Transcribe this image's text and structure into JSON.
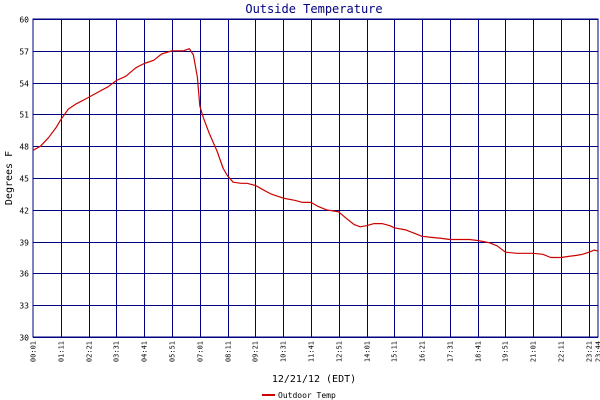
{
  "chart_data": {
    "type": "line",
    "title": "Outside Temperature",
    "xlabel": "12/21/12 (EDT)",
    "ylabel": "Degrees F",
    "ylim": [
      30,
      60
    ],
    "yticks": [
      30,
      33,
      36,
      39,
      42,
      45,
      48,
      51,
      54,
      57,
      60
    ],
    "xlim": [
      "00:01",
      "23:44"
    ],
    "xticks": [
      "00:01",
      "01:11",
      "02:21",
      "03:31",
      "04:41",
      "05:51",
      "07:01",
      "08:11",
      "09:21",
      "10:31",
      "11:41",
      "12:51",
      "14:01",
      "15:11",
      "16:21",
      "17:31",
      "18:41",
      "19:51",
      "21:01",
      "22:11",
      "23:21",
      "23:44"
    ],
    "grid": true,
    "colors": {
      "grid": "#000080",
      "series": "#cc0000",
      "title": "#000080"
    },
    "legend_position": "bottom-center",
    "series": [
      {
        "name": "Outdoor Temp",
        "x": [
          "00:01",
          "00:20",
          "00:40",
          "01:00",
          "01:11",
          "01:30",
          "01:50",
          "02:21",
          "02:45",
          "03:10",
          "03:31",
          "03:55",
          "04:20",
          "04:41",
          "05:05",
          "05:25",
          "05:51",
          "06:20",
          "06:35",
          "06:45",
          "06:55",
          "07:01",
          "07:10",
          "07:25",
          "07:45",
          "08:00",
          "08:11",
          "08:25",
          "08:45",
          "09:00",
          "09:21",
          "09:40",
          "10:00",
          "10:31",
          "11:00",
          "11:20",
          "11:41",
          "12:00",
          "12:20",
          "12:51",
          "13:10",
          "13:30",
          "13:45",
          "14:01",
          "14:20",
          "14:40",
          "15:00",
          "15:11",
          "15:40",
          "16:00",
          "16:21",
          "16:45",
          "17:10",
          "17:31",
          "18:00",
          "18:20",
          "18:41",
          "19:10",
          "19:30",
          "19:51",
          "20:20",
          "20:40",
          "21:01",
          "21:25",
          "21:45",
          "22:11",
          "22:30",
          "22:50",
          "23:05",
          "23:21",
          "23:35",
          "23:44"
        ],
        "values": [
          47.6,
          48.0,
          48.8,
          49.8,
          50.5,
          51.5,
          52.0,
          52.6,
          53.1,
          53.6,
          54.2,
          54.6,
          55.4,
          55.8,
          56.1,
          56.7,
          57.0,
          57.0,
          57.2,
          56.6,
          54.5,
          51.8,
          50.7,
          49.2,
          47.5,
          45.9,
          45.2,
          44.6,
          44.5,
          44.5,
          44.3,
          43.9,
          43.5,
          43.1,
          42.9,
          42.7,
          42.7,
          42.3,
          42.0,
          41.8,
          41.2,
          40.6,
          40.4,
          40.5,
          40.7,
          40.7,
          40.5,
          40.3,
          40.1,
          39.8,
          39.5,
          39.4,
          39.3,
          39.2,
          39.2,
          39.2,
          39.1,
          38.9,
          38.6,
          38.0,
          37.9,
          37.9,
          37.9,
          37.8,
          37.5,
          37.5,
          37.6,
          37.7,
          37.8,
          38.0,
          38.2,
          38.1
        ]
      }
    ]
  }
}
